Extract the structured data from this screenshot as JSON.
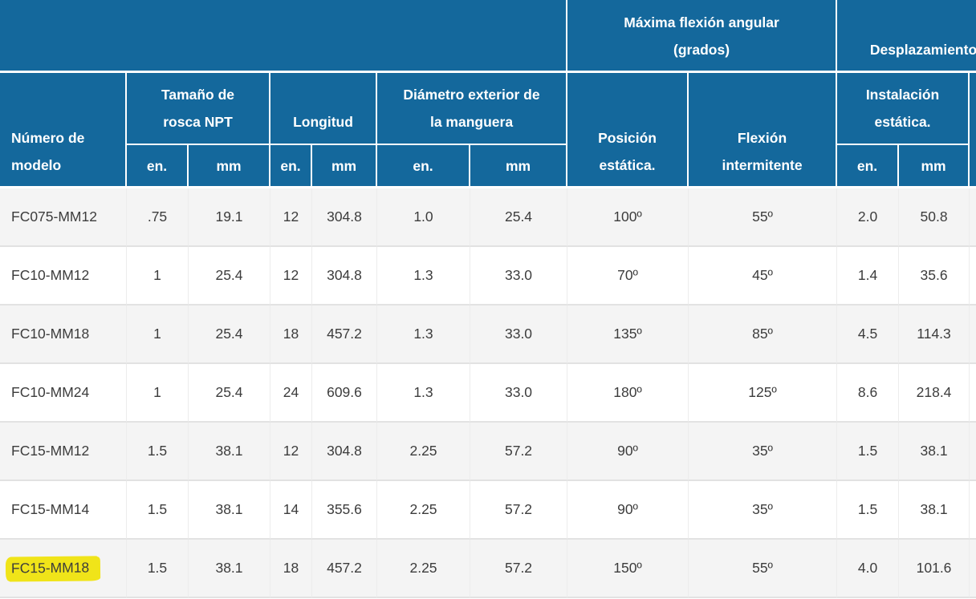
{
  "colors": {
    "header_blue": "#14689c",
    "row_alt": "#f4f4f4",
    "highlight_yellow": "#f0e419",
    "data_text": "#3c3c3c"
  },
  "table": {
    "top": {
      "blank": "",
      "max_flex_line1": "Máxima flexión angular",
      "max_flex_line2": "(grados)",
      "displacement": "Desplazamiento"
    },
    "groups": {
      "model_line1": "Número de",
      "model_line2": "modelo",
      "npt_line1": "Tamaño de",
      "npt_line2": "rosca NPT",
      "length": "Longitud",
      "od_line1": "Diámetro exterior de",
      "od_line2": "la manguera",
      "static_pos_line1": "Posición",
      "static_pos_line2": "estática.",
      "intermittent_line1": "Flexión",
      "intermittent_line2": "intermitente",
      "static_install_line1": "Instalación",
      "static_install_line2": "estática."
    },
    "units": {
      "in": "en.",
      "mm": "mm"
    },
    "rows": [
      {
        "model": "FC075-MM12",
        "highlighted": false,
        "values": [
          ".75",
          "19.1",
          "12",
          "304.8",
          "1.0",
          "25.4",
          "100º",
          "55º",
          "2.0",
          "50.8"
        ]
      },
      {
        "model": "FC10-MM12",
        "highlighted": false,
        "values": [
          "1",
          "25.4",
          "12",
          "304.8",
          "1.3",
          "33.0",
          "70º",
          "45º",
          "1.4",
          "35.6"
        ]
      },
      {
        "model": "FC10-MM18",
        "highlighted": false,
        "values": [
          "1",
          "25.4",
          "18",
          "457.2",
          "1.3",
          "33.0",
          "135º",
          "85º",
          "4.5",
          "114.3"
        ]
      },
      {
        "model": "FC10-MM24",
        "highlighted": false,
        "values": [
          "1",
          "25.4",
          "24",
          "609.6",
          "1.3",
          "33.0",
          "180º",
          "125º",
          "8.6",
          "218.4"
        ]
      },
      {
        "model": "FC15-MM12",
        "highlighted": false,
        "values": [
          "1.5",
          "38.1",
          "12",
          "304.8",
          "2.25",
          "57.2",
          "90º",
          "35º",
          "1.5",
          "38.1"
        ]
      },
      {
        "model": "FC15-MM14",
        "highlighted": false,
        "values": [
          "1.5",
          "38.1",
          "14",
          "355.6",
          "2.25",
          "57.2",
          "90º",
          "35º",
          "1.5",
          "38.1"
        ]
      },
      {
        "model": "FC15-MM18",
        "highlighted": true,
        "values": [
          "1.5",
          "38.1",
          "18",
          "457.2",
          "2.25",
          "57.2",
          "150º",
          "55º",
          "4.0",
          "101.6"
        ]
      }
    ]
  }
}
